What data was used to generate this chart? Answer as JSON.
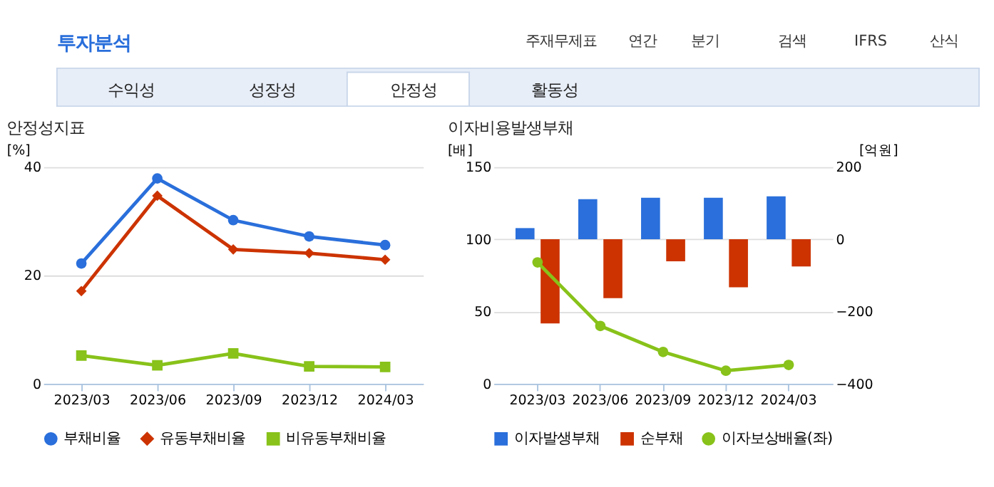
{
  "chart_data": [
    {
      "type": "line",
      "title": "안정성지표",
      "ylabel": "[%]",
      "annotations": [
        "투자분석",
        "주재무제표",
        "연간",
        "분기",
        "검색",
        "IFRS",
        "산식",
        "수익성",
        "성장성",
        "안정성",
        "활동성"
      ],
      "categories": [
        "2023/03",
        "2023/06",
        "2023/09",
        "2023/12",
        "2024/03"
      ],
      "series": [
        {
          "name": "부채비율",
          "color": "#2a6fdb",
          "marker": "circle",
          "values": [
            22.2,
            37.9,
            30.2,
            27.2,
            25.6
          ]
        },
        {
          "name": "유동부채비율",
          "color": "#cc3300",
          "marker": "diamond",
          "values": [
            17.1,
            34.7,
            24.8,
            24.1,
            22.9
          ]
        },
        {
          "name": "비유동부채비율",
          "color": "#88c21a",
          "marker": "square",
          "values": [
            5.2,
            3.4,
            5.6,
            3.2,
            3.1
          ]
        }
      ],
      "ylim": [
        0,
        40
      ],
      "yticks": [
        0,
        20,
        40
      ],
      "grid": "y",
      "legend": "bottom",
      "line_style": "solid"
    },
    {
      "type": "bar",
      "title": "이자비용발생부채",
      "ylabel": "[배]",
      "y2label": "[억원]",
      "categories": [
        "2023/03",
        "2023/06",
        "2023/09",
        "2023/12",
        "2024/03"
      ],
      "series": [
        {
          "name": "이자발생부채",
          "color": "#2a6fdb",
          "axis": "y2",
          "values": [
            31,
            111,
            115,
            115,
            119
          ]
        },
        {
          "name": "순부채",
          "color": "#cc3300",
          "axis": "y2",
          "values": [
            -233,
            -163,
            -61,
            -133,
            -75
          ]
        },
        {
          "name": "이자보상배율(좌)",
          "color": "#88c21a",
          "type": "line",
          "axis": "y",
          "marker": "circle",
          "values": [
            84,
            40,
            22,
            9,
            13
          ]
        }
      ],
      "ylim": [
        0,
        150
      ],
      "yticks": [
        0,
        50,
        100,
        150
      ],
      "y2lim": [
        -400,
        200
      ],
      "y2ticks": [
        -400,
        -200,
        0,
        200
      ],
      "grid": "y",
      "legend": "bottom",
      "line_style": "solid"
    }
  ]
}
